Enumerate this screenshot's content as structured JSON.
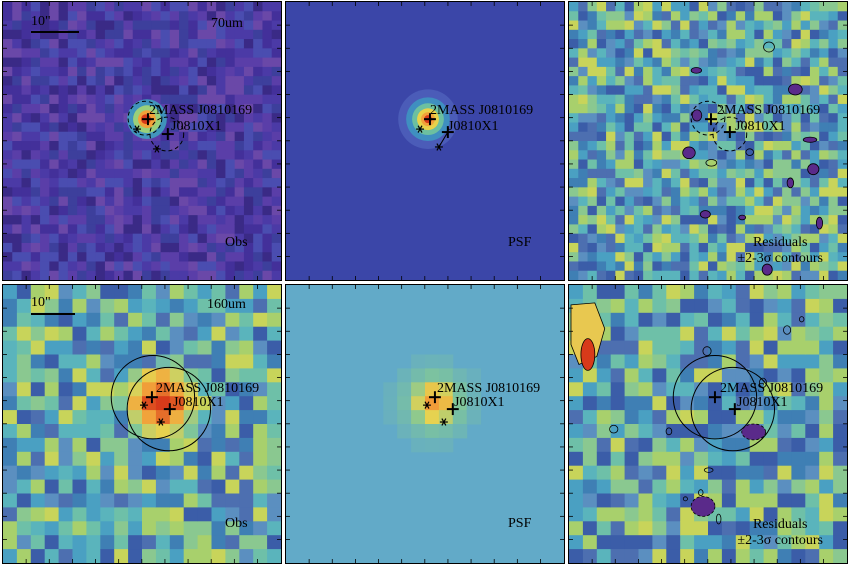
{
  "panels": {
    "r1c1": {
      "scale_text": "10\"",
      "wave": "70um",
      "label": "Obs"
    },
    "r1c2": {
      "label": "PSF"
    },
    "r1c3": {
      "label": "Residuals",
      "contours": "±2-3σ contours"
    },
    "r2c1": {
      "scale_text": "10\"",
      "wave": "160um",
      "label": "Obs"
    },
    "r2c2": {
      "label": "PSF"
    },
    "r2c3": {
      "label": "Residuals",
      "contours": "±2-3σ contours"
    }
  },
  "sources": {
    "r1": {
      "primary": "2MASS J0810169",
      "secondary": "J0810X1"
    },
    "r2": {
      "primary": "2MASS J0810169",
      "secondary": "J0810X1"
    }
  },
  "colors": {
    "obs70_bg": "#4a3aa0",
    "psf70_bg": "#3b46a8",
    "psf160_bg": "#62aac8",
    "resid_bg": "#5fb0c2",
    "peak_red": "#d83a1a",
    "peak_orange": "#f2a23a",
    "peak_yellow": "#e8d24a"
  }
}
